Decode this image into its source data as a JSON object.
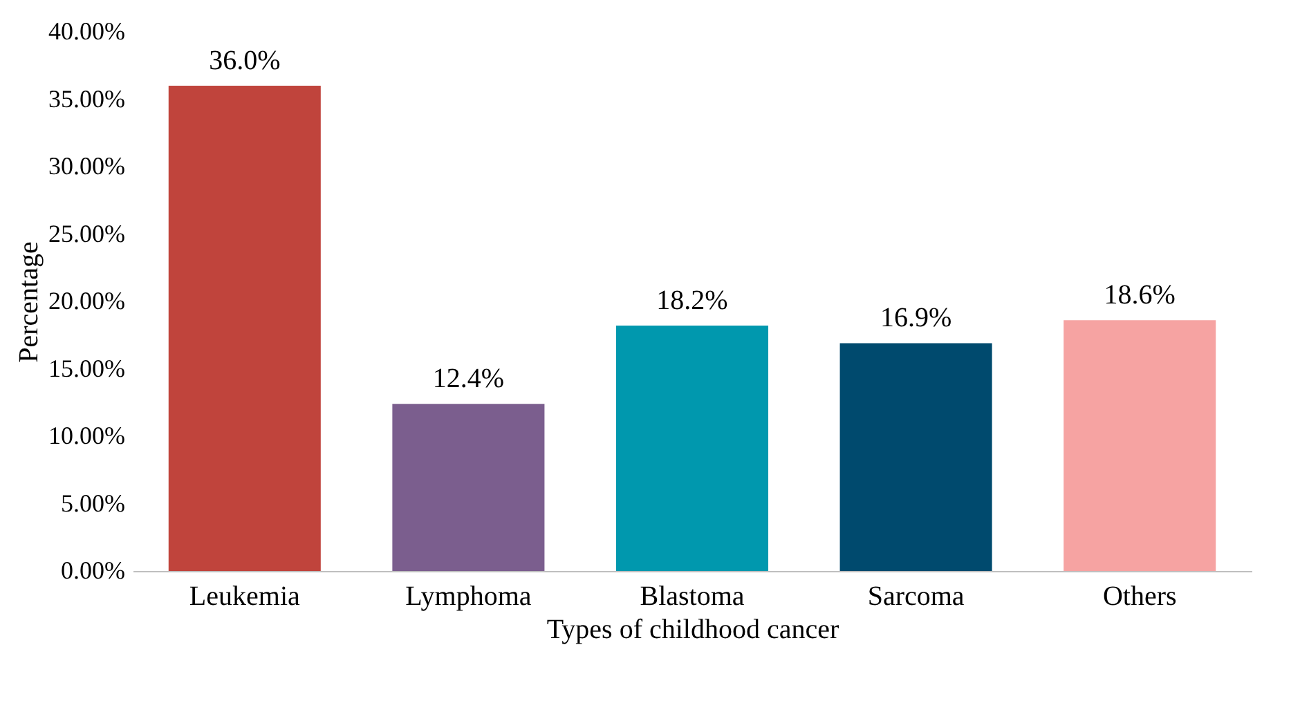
{
  "chart_data": {
    "type": "bar",
    "xlabel": "Types of childhood cancer",
    "ylabel": "Percentage",
    "categories": [
      "Leukemia",
      "Lymphoma",
      "Blastoma",
      "Sarcoma",
      "Others"
    ],
    "values": [
      36.0,
      12.4,
      18.2,
      16.9,
      18.6
    ],
    "colors": [
      "#c0443c",
      "#7b5e8e",
      "#0098ae",
      "#004a6e",
      "#f6a3a2"
    ],
    "value_labels": [
      "36.0%",
      "12.4%",
      "18.2%",
      "16.9%",
      "18.6%"
    ],
    "ylim": [
      0,
      40
    ],
    "yticks": [
      {
        "value": 0,
        "label": "0.00%"
      },
      {
        "value": 5,
        "label": "5.00%"
      },
      {
        "value": 10,
        "label": "10.00%"
      },
      {
        "value": 15,
        "label": "15.00%"
      },
      {
        "value": 20,
        "label": "20.00%"
      },
      {
        "value": 25,
        "label": "25.00%"
      },
      {
        "value": 30,
        "label": "30.00%"
      },
      {
        "value": 35,
        "label": "35.00%"
      },
      {
        "value": 40,
        "label": "40.00%"
      }
    ],
    "grid": false
  }
}
